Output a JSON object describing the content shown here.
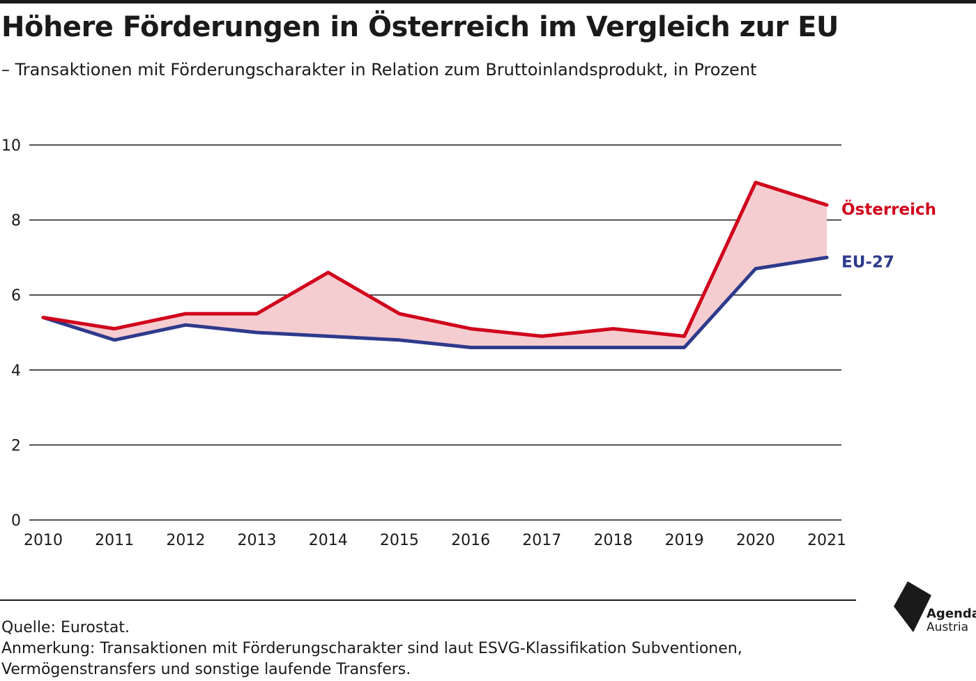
{
  "header": {
    "title": "Höhere Förderungen in Österreich im Vergleich zur EU",
    "subtitle": "– Transaktionen mit Förderungscharakter in Relation zum Bruttoinlandsprodukt, in Prozent"
  },
  "chart_data": {
    "type": "line",
    "x": [
      "2010",
      "2011",
      "2012",
      "2013",
      "2014",
      "2015",
      "2016",
      "2017",
      "2018",
      "2019",
      "2020",
      "2021"
    ],
    "series": [
      {
        "name": "Österreich",
        "color": "#d0021b",
        "values": [
          5.4,
          5.1,
          5.5,
          5.5,
          6.6,
          5.5,
          5.1,
          4.9,
          5.1,
          4.9,
          9.0,
          8.4
        ]
      },
      {
        "name": "EU-27",
        "color": "#2e3a8c",
        "values": [
          5.4,
          4.8,
          5.2,
          5.0,
          4.9,
          4.8,
          4.6,
          4.6,
          4.6,
          4.6,
          6.7,
          7.0
        ]
      }
    ],
    "yticks": [
      "0",
      "2",
      "4",
      "6",
      "8",
      "10"
    ],
    "ylim": [
      0,
      10
    ],
    "grid": true,
    "fill_between_color": "#f5cdd0",
    "legend": "direct labels at line ends"
  },
  "footer": {
    "source": "Quelle: Eurostat.",
    "note_line1": "Anmerkung: Transaktionen mit Förderungscharakter sind laut ESVG-Klassifikation Subventionen,",
    "note_line2": "Vermögenstransfers und sonstige laufende Transfers."
  },
  "logo": {
    "name": "agenda-austria-logo",
    "line1": "Agenda",
    "line2": "Austria"
  }
}
